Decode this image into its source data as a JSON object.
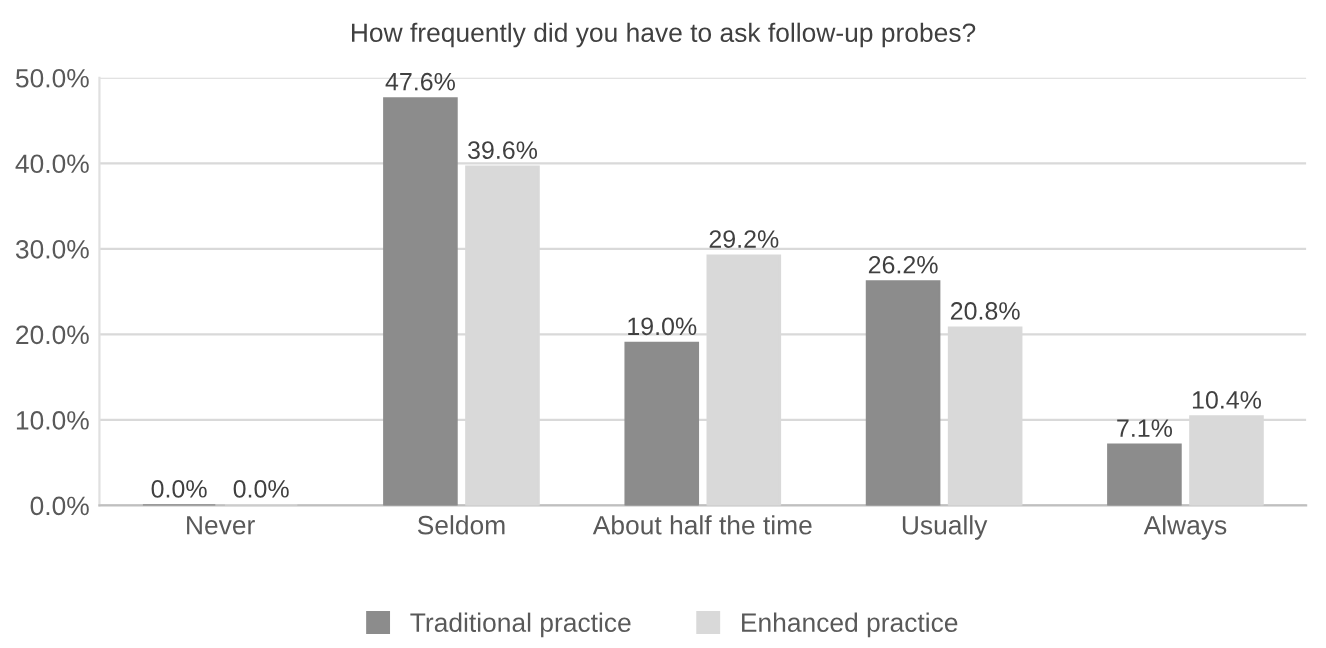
{
  "chart_data": {
    "type": "bar",
    "title": "How frequently did you have to ask follow-up probes?",
    "categories": [
      "Never",
      "Seldom",
      "About half the time",
      "Usually",
      "Always"
    ],
    "series": [
      {
        "name": "Traditional practice",
        "color": "#8c8c8c",
        "values": [
          0.0,
          47.6,
          19.0,
          26.2,
          7.1
        ],
        "value_labels": [
          "0.0%",
          "47.6%",
          "19.0%",
          "26.2%",
          "7.1%"
        ]
      },
      {
        "name": "Enhanced practice",
        "color": "#d9d9d9",
        "values": [
          0.0,
          39.6,
          29.2,
          20.8,
          10.4
        ],
        "value_labels": [
          "0.0%",
          "39.6%",
          "29.2%",
          "20.8%",
          "10.4%"
        ]
      }
    ],
    "ylim": [
      0,
      50
    ],
    "yticks": [
      {
        "value": 0,
        "label": "0.0%"
      },
      {
        "value": 10,
        "label": "10.0%"
      },
      {
        "value": 20,
        "label": "20.0%"
      },
      {
        "value": 30,
        "label": "30.0%"
      },
      {
        "value": 40,
        "label": "40.0%"
      },
      {
        "value": 50,
        "label": "50.0%"
      }
    ],
    "grid": "y",
    "legend": "bottom"
  }
}
